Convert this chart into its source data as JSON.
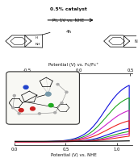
{
  "top_text_line1": "0.5% catalyst",
  "top_text_line2": "Pt, 1V vs. NHE",
  "top_text_line3": "4h",
  "top_axis_label": "Potential (V) vs. Fc/Fc⁺",
  "bottom_axis_label": "Potential (V) vs. NHE",
  "bg_color": "#ffffff",
  "curves": [
    {
      "color": "#1010dd",
      "lw": 0.8
    },
    {
      "color": "#22aa22",
      "lw": 0.8
    },
    {
      "color": "#cc22cc",
      "lw": 0.8
    },
    {
      "color": "#ee2222",
      "lw": 0.8
    },
    {
      "color": "#111111",
      "lw": 0.9
    }
  ],
  "text_color": "#111111",
  "arrow_color": "#111111"
}
